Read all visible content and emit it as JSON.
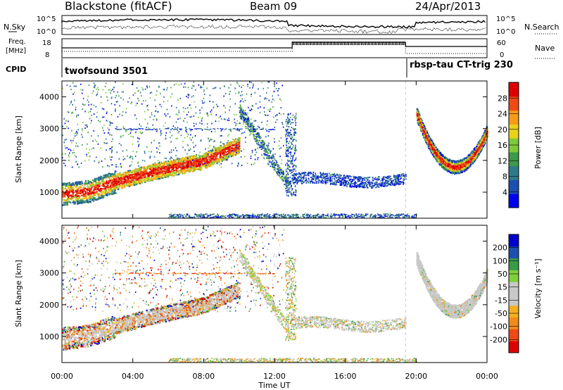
{
  "header": {
    "site": "Blackstone (fitACF)",
    "beam": "Beam 09",
    "date": "24/Apr/2013"
  },
  "labels": {
    "nsky": "N.Sky",
    "nsearch": "N.Search",
    "freq_line1": "Freq.",
    "freq_line2": "[MHz]",
    "nave": "Nave",
    "cpid": "CPID",
    "noise_top_left": "10^5",
    "noise_bottom_left": "10^0",
    "noise_top_right": "10^5",
    "noise_bottom_right": "10^0",
    "freq_top": "18",
    "freq_bottom": "8",
    "nave_top": "60",
    "nave_bottom": "0"
  },
  "cpid_segments": [
    {
      "label": "twofsound 3501",
      "start_hour": 0
    },
    {
      "label": "rbsp-tau CT-trig 230",
      "start_hour": 19.4
    }
  ],
  "chart_data": [
    {
      "type": "heatmap",
      "name": "power",
      "ylabel": "Slant Range [km]",
      "xlabel": "Time UT",
      "x_ticks": [
        "00:00",
        "04:00",
        "08:00",
        "12:00",
        "16:00",
        "20:00",
        "00:00"
      ],
      "x_tick_hours": [
        0,
        4,
        8,
        12,
        16,
        20,
        24
      ],
      "y_ticks": [
        1000,
        2000,
        3000,
        4000
      ],
      "ylim": [
        180,
        4500
      ],
      "xlim_hours": [
        0,
        24
      ],
      "colorbar": {
        "label": "Power [dB]",
        "ticks": [
          "28",
          "24",
          "20",
          "16",
          "12",
          "8",
          "4"
        ],
        "range": [
          0,
          32
        ],
        "colors": [
          "#0000ee",
          "#1d4fb0",
          "#2f7a8a",
          "#3d9a4a",
          "#7ec83c",
          "#e8d21a",
          "#f59a1a",
          "#ee4a16",
          "#dd0000"
        ]
      }
    },
    {
      "type": "heatmap",
      "name": "velocity",
      "ylabel": "Slant Range [km]",
      "xlabel": "Time UT",
      "x_ticks": [
        "00:00",
        "04:00",
        "08:00",
        "12:00",
        "16:00",
        "20:00",
        "00:00"
      ],
      "x_tick_hours": [
        0,
        4,
        8,
        12,
        16,
        20,
        24
      ],
      "y_ticks": [
        1000,
        2000,
        3000,
        4000
      ],
      "ylim": [
        180,
        4500
      ],
      "xlim_hours": [
        0,
        24
      ],
      "colorbar": {
        "label": "Velocity [m s⁻¹]",
        "ticks": [
          "200",
          "100",
          "50",
          "15",
          "-15",
          "-50",
          "-100",
          "-200"
        ],
        "range": [
          -250,
          250
        ],
        "colors": [
          "#dd0000",
          "#ee4a16",
          "#f08a1a",
          "#f2b020",
          "#c8c8c8",
          "#c8c8c8",
          "#7ed03c",
          "#3a9a48",
          "#1d4fb0",
          "#0000cc"
        ]
      }
    }
  ]
}
